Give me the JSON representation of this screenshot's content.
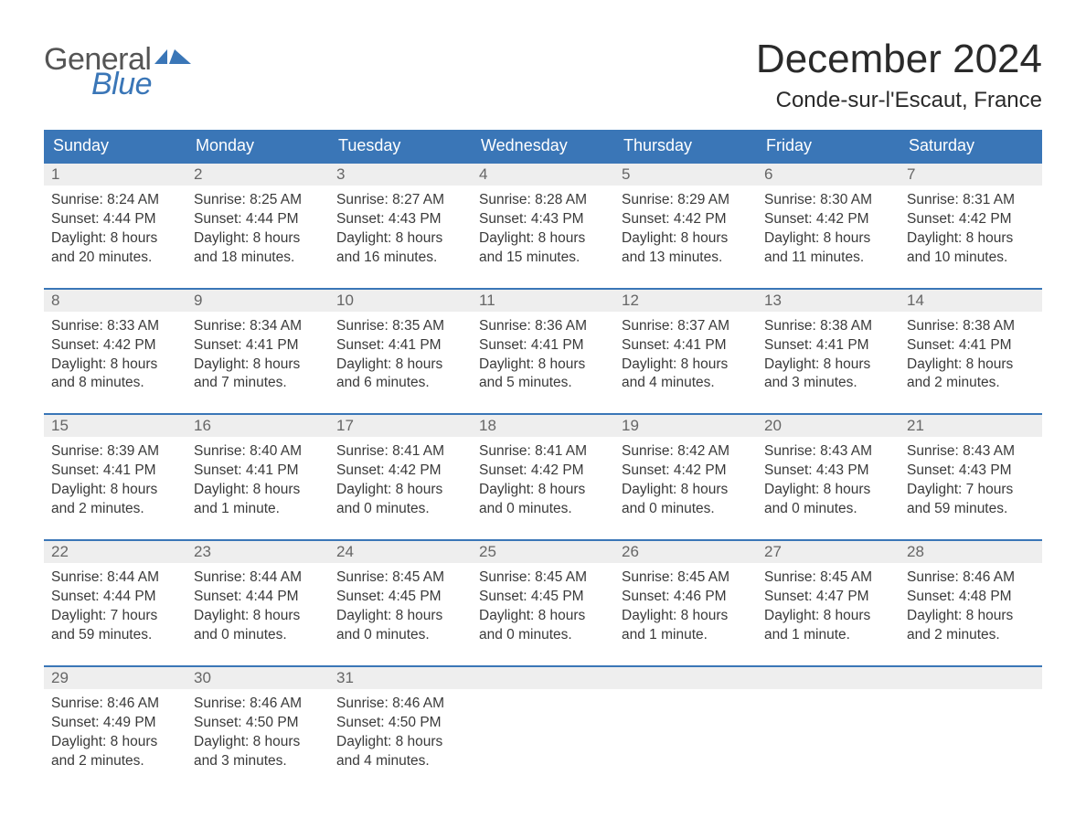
{
  "brand": {
    "name1": "General",
    "name2": "Blue",
    "flag_color": "#3a76b7"
  },
  "title": "December 2024",
  "location": "Conde-sur-l'Escaut, France",
  "colors": {
    "header_bg": "#3a76b7",
    "header_text": "#ffffff",
    "daynum_bg": "#eeeeee",
    "daynum_text": "#666666",
    "body_text": "#3a3a3a",
    "week_border": "#3a76b7",
    "page_bg": "#ffffff"
  },
  "layout": {
    "columns": 7,
    "rows": 5,
    "font_family": "Arial"
  },
  "weekday_headers": [
    "Sunday",
    "Monday",
    "Tuesday",
    "Wednesday",
    "Thursday",
    "Friday",
    "Saturday"
  ],
  "days": [
    {
      "n": "1",
      "sunrise": "Sunrise: 8:24 AM",
      "sunset": "Sunset: 4:44 PM",
      "d1": "Daylight: 8 hours",
      "d2": "and 20 minutes."
    },
    {
      "n": "2",
      "sunrise": "Sunrise: 8:25 AM",
      "sunset": "Sunset: 4:44 PM",
      "d1": "Daylight: 8 hours",
      "d2": "and 18 minutes."
    },
    {
      "n": "3",
      "sunrise": "Sunrise: 8:27 AM",
      "sunset": "Sunset: 4:43 PM",
      "d1": "Daylight: 8 hours",
      "d2": "and 16 minutes."
    },
    {
      "n": "4",
      "sunrise": "Sunrise: 8:28 AM",
      "sunset": "Sunset: 4:43 PM",
      "d1": "Daylight: 8 hours",
      "d2": "and 15 minutes."
    },
    {
      "n": "5",
      "sunrise": "Sunrise: 8:29 AM",
      "sunset": "Sunset: 4:42 PM",
      "d1": "Daylight: 8 hours",
      "d2": "and 13 minutes."
    },
    {
      "n": "6",
      "sunrise": "Sunrise: 8:30 AM",
      "sunset": "Sunset: 4:42 PM",
      "d1": "Daylight: 8 hours",
      "d2": "and 11 minutes."
    },
    {
      "n": "7",
      "sunrise": "Sunrise: 8:31 AM",
      "sunset": "Sunset: 4:42 PM",
      "d1": "Daylight: 8 hours",
      "d2": "and 10 minutes."
    },
    {
      "n": "8",
      "sunrise": "Sunrise: 8:33 AM",
      "sunset": "Sunset: 4:42 PM",
      "d1": "Daylight: 8 hours",
      "d2": "and 8 minutes."
    },
    {
      "n": "9",
      "sunrise": "Sunrise: 8:34 AM",
      "sunset": "Sunset: 4:41 PM",
      "d1": "Daylight: 8 hours",
      "d2": "and 7 minutes."
    },
    {
      "n": "10",
      "sunrise": "Sunrise: 8:35 AM",
      "sunset": "Sunset: 4:41 PM",
      "d1": "Daylight: 8 hours",
      "d2": "and 6 minutes."
    },
    {
      "n": "11",
      "sunrise": "Sunrise: 8:36 AM",
      "sunset": "Sunset: 4:41 PM",
      "d1": "Daylight: 8 hours",
      "d2": "and 5 minutes."
    },
    {
      "n": "12",
      "sunrise": "Sunrise: 8:37 AM",
      "sunset": "Sunset: 4:41 PM",
      "d1": "Daylight: 8 hours",
      "d2": "and 4 minutes."
    },
    {
      "n": "13",
      "sunrise": "Sunrise: 8:38 AM",
      "sunset": "Sunset: 4:41 PM",
      "d1": "Daylight: 8 hours",
      "d2": "and 3 minutes."
    },
    {
      "n": "14",
      "sunrise": "Sunrise: 8:38 AM",
      "sunset": "Sunset: 4:41 PM",
      "d1": "Daylight: 8 hours",
      "d2": "and 2 minutes."
    },
    {
      "n": "15",
      "sunrise": "Sunrise: 8:39 AM",
      "sunset": "Sunset: 4:41 PM",
      "d1": "Daylight: 8 hours",
      "d2": "and 2 minutes."
    },
    {
      "n": "16",
      "sunrise": "Sunrise: 8:40 AM",
      "sunset": "Sunset: 4:41 PM",
      "d1": "Daylight: 8 hours",
      "d2": "and 1 minute."
    },
    {
      "n": "17",
      "sunrise": "Sunrise: 8:41 AM",
      "sunset": "Sunset: 4:42 PM",
      "d1": "Daylight: 8 hours",
      "d2": "and 0 minutes."
    },
    {
      "n": "18",
      "sunrise": "Sunrise: 8:41 AM",
      "sunset": "Sunset: 4:42 PM",
      "d1": "Daylight: 8 hours",
      "d2": "and 0 minutes."
    },
    {
      "n": "19",
      "sunrise": "Sunrise: 8:42 AM",
      "sunset": "Sunset: 4:42 PM",
      "d1": "Daylight: 8 hours",
      "d2": "and 0 minutes."
    },
    {
      "n": "20",
      "sunrise": "Sunrise: 8:43 AM",
      "sunset": "Sunset: 4:43 PM",
      "d1": "Daylight: 8 hours",
      "d2": "and 0 minutes."
    },
    {
      "n": "21",
      "sunrise": "Sunrise: 8:43 AM",
      "sunset": "Sunset: 4:43 PM",
      "d1": "Daylight: 7 hours",
      "d2": "and 59 minutes."
    },
    {
      "n": "22",
      "sunrise": "Sunrise: 8:44 AM",
      "sunset": "Sunset: 4:44 PM",
      "d1": "Daylight: 7 hours",
      "d2": "and 59 minutes."
    },
    {
      "n": "23",
      "sunrise": "Sunrise: 8:44 AM",
      "sunset": "Sunset: 4:44 PM",
      "d1": "Daylight: 8 hours",
      "d2": "and 0 minutes."
    },
    {
      "n": "24",
      "sunrise": "Sunrise: 8:45 AM",
      "sunset": "Sunset: 4:45 PM",
      "d1": "Daylight: 8 hours",
      "d2": "and 0 minutes."
    },
    {
      "n": "25",
      "sunrise": "Sunrise: 8:45 AM",
      "sunset": "Sunset: 4:45 PM",
      "d1": "Daylight: 8 hours",
      "d2": "and 0 minutes."
    },
    {
      "n": "26",
      "sunrise": "Sunrise: 8:45 AM",
      "sunset": "Sunset: 4:46 PM",
      "d1": "Daylight: 8 hours",
      "d2": "and 1 minute."
    },
    {
      "n": "27",
      "sunrise": "Sunrise: 8:45 AM",
      "sunset": "Sunset: 4:47 PM",
      "d1": "Daylight: 8 hours",
      "d2": "and 1 minute."
    },
    {
      "n": "28",
      "sunrise": "Sunrise: 8:46 AM",
      "sunset": "Sunset: 4:48 PM",
      "d1": "Daylight: 8 hours",
      "d2": "and 2 minutes."
    },
    {
      "n": "29",
      "sunrise": "Sunrise: 8:46 AM",
      "sunset": "Sunset: 4:49 PM",
      "d1": "Daylight: 8 hours",
      "d2": "and 2 minutes."
    },
    {
      "n": "30",
      "sunrise": "Sunrise: 8:46 AM",
      "sunset": "Sunset: 4:50 PM",
      "d1": "Daylight: 8 hours",
      "d2": "and 3 minutes."
    },
    {
      "n": "31",
      "sunrise": "Sunrise: 8:46 AM",
      "sunset": "Sunset: 4:50 PM",
      "d1": "Daylight: 8 hours",
      "d2": "and 4 minutes."
    }
  ]
}
